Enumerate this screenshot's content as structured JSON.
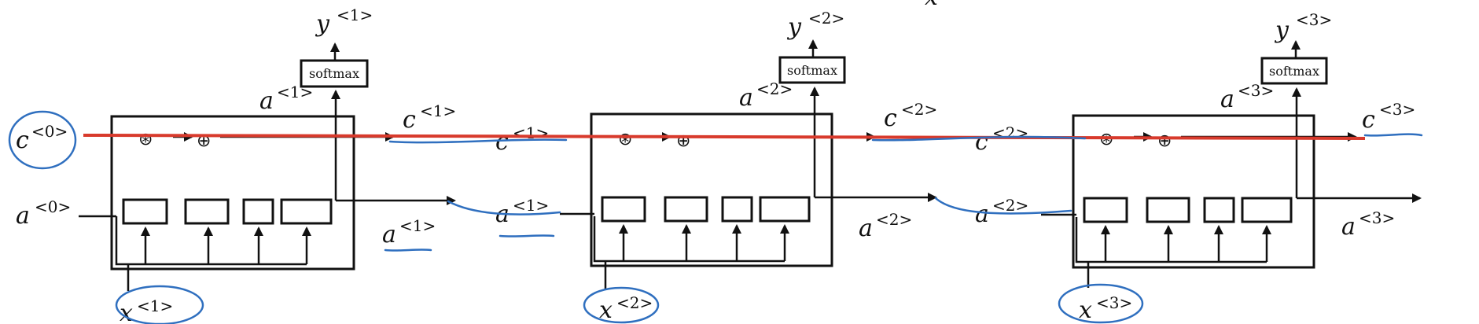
{
  "diagram": {
    "initial_cell_label": "c",
    "initial_cell_sup": "<0>",
    "initial_activation_label": "a",
    "initial_activation_sup": "<0>",
    "truncated_top_label": "x",
    "gate_multiply_symbol": "⊛",
    "gate_add_symbol": "⊕",
    "units": [
      {
        "y_label": "y",
        "y_sup": "<1>",
        "softmax_label": "softmax",
        "a_top_label": "a",
        "a_top_sup": "<1>",
        "c_out_label": "c",
        "c_out_sup": "<1>",
        "c_hand_label": "c",
        "c_hand_sup": "<1>",
        "a_out_label": "a",
        "a_out_sup": "<1>",
        "a_hand_label": "a",
        "a_hand_sup": "<1>",
        "x_label": "x",
        "x_sup": "<1>"
      },
      {
        "y_label": "y",
        "y_sup": "<2>",
        "softmax_label": "softmax",
        "a_top_label": "a",
        "a_top_sup": "<2>",
        "c_out_label": "c",
        "c_out_sup": "<2>",
        "c_hand_label": "c",
        "c_hand_sup": "<2>",
        "a_out_label": "a",
        "a_out_sup": "<2>",
        "a_hand_label": "a",
        "a_hand_sup": "<2>",
        "x_label": "x",
        "x_sup": "<2>"
      },
      {
        "y_label": "y",
        "y_sup": "<3>",
        "softmax_label": "softmax",
        "a_top_label": "a",
        "a_top_sup": "<3>",
        "c_out_label": "c",
        "c_out_sup": "<3>",
        "a_out_label": "a",
        "a_out_sup": "<3>",
        "x_label": "x",
        "x_sup": "<3>"
      }
    ],
    "colors": {
      "line": "#111111",
      "cell_state_highlight": "#d83a2c",
      "handwriting": "#2f6fbf"
    }
  }
}
